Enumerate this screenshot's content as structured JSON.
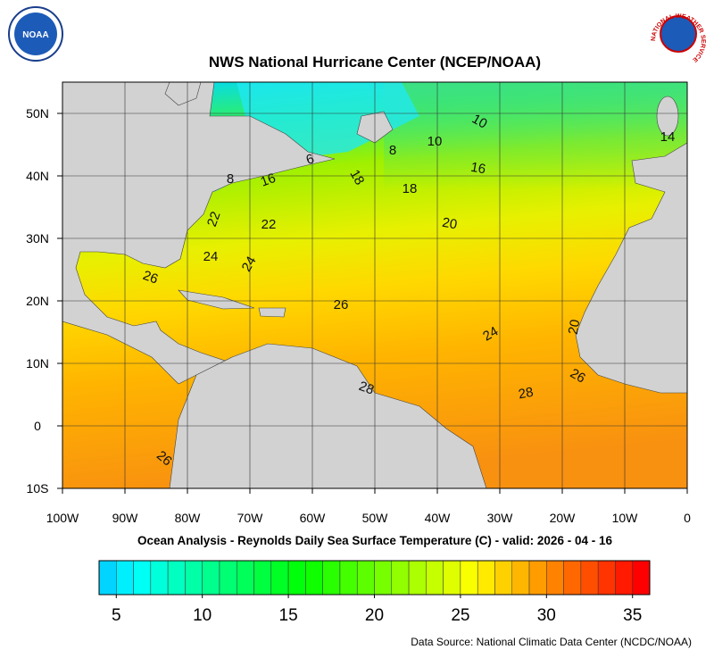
{
  "title": "NWS National Hurricane Center (NCEP/NOAA)",
  "subtitle": "Ocean Analysis - Reynolds Daily Sea Surface Temperature (C) - valid: 2026 - 04 - 16",
  "source": "Data Source: National Climatic Data Center (NCDC/NOAA)",
  "noaa_logo": "NOAA",
  "nws_logo": "NATIONAL WEATHER SERVICE",
  "map": {
    "xlim": [
      -100,
      0
    ],
    "ylim": [
      -10,
      55
    ],
    "xticks": [
      {
        "value": -100,
        "label": "100W"
      },
      {
        "value": -90,
        "label": "90W"
      },
      {
        "value": -80,
        "label": "80W"
      },
      {
        "value": -70,
        "label": "70W"
      },
      {
        "value": -60,
        "label": "60W"
      },
      {
        "value": -50,
        "label": "50W"
      },
      {
        "value": -40,
        "label": "40W"
      },
      {
        "value": -30,
        "label": "30W"
      },
      {
        "value": -20,
        "label": "20W"
      },
      {
        "value": -10,
        "label": "10W"
      },
      0
    ],
    "yticks": [
      {
        "value": -10,
        "label": "10S"
      },
      0,
      {
        "value": 10,
        "label": "10N"
      },
      {
        "value": 20,
        "label": "20N"
      },
      {
        "value": 30,
        "label": "30N"
      },
      {
        "value": 40,
        "label": "40N"
      },
      {
        "value": 50,
        "label": "50N"
      }
    ],
    "contour_labels": [
      10,
      14,
      8,
      10,
      6,
      16,
      8,
      16,
      18,
      18,
      22,
      22,
      20,
      24,
      24,
      26,
      26,
      20,
      24,
      26,
      28,
      28,
      26
    ]
  },
  "colorbar": {
    "range": [
      4,
      36
    ],
    "ticks": [
      5,
      10,
      15,
      20,
      25,
      30,
      35
    ]
  }
}
